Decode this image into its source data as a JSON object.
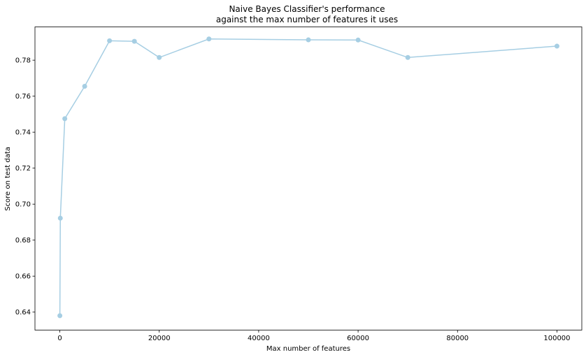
{
  "chart_data": {
    "type": "line",
    "title_lines": [
      "Naive Bayes Classifier's performance",
      "against the max number of features it uses"
    ],
    "xlabel": "Max number of features",
    "ylabel": "Score on test data",
    "xlim": [
      -5000,
      105000
    ],
    "ylim": [
      0.63,
      0.7985
    ],
    "xticks": [
      0,
      20000,
      40000,
      60000,
      80000,
      100000
    ],
    "xtick_labels": [
      "0",
      "20000",
      "40000",
      "60000",
      "80000",
      "100000"
    ],
    "yticks": [
      0.64,
      0.66,
      0.68,
      0.7,
      0.72,
      0.74,
      0.76,
      0.78
    ],
    "ytick_labels": [
      "0.64",
      "0.66",
      "0.68",
      "0.70",
      "0.72",
      "0.74",
      "0.76",
      "0.78"
    ],
    "grid": false,
    "line_color": "#a6cee3",
    "series": [
      {
        "x": [
          10,
          100,
          1000,
          5000,
          10000,
          15000,
          20000,
          30000,
          50000,
          60000,
          70000,
          100000
        ],
        "y": [
          0.638,
          0.6922,
          0.7475,
          0.7655,
          0.7908,
          0.7905,
          0.7815,
          0.7918,
          0.7913,
          0.7912,
          0.7815,
          0.7878
        ]
      }
    ]
  }
}
